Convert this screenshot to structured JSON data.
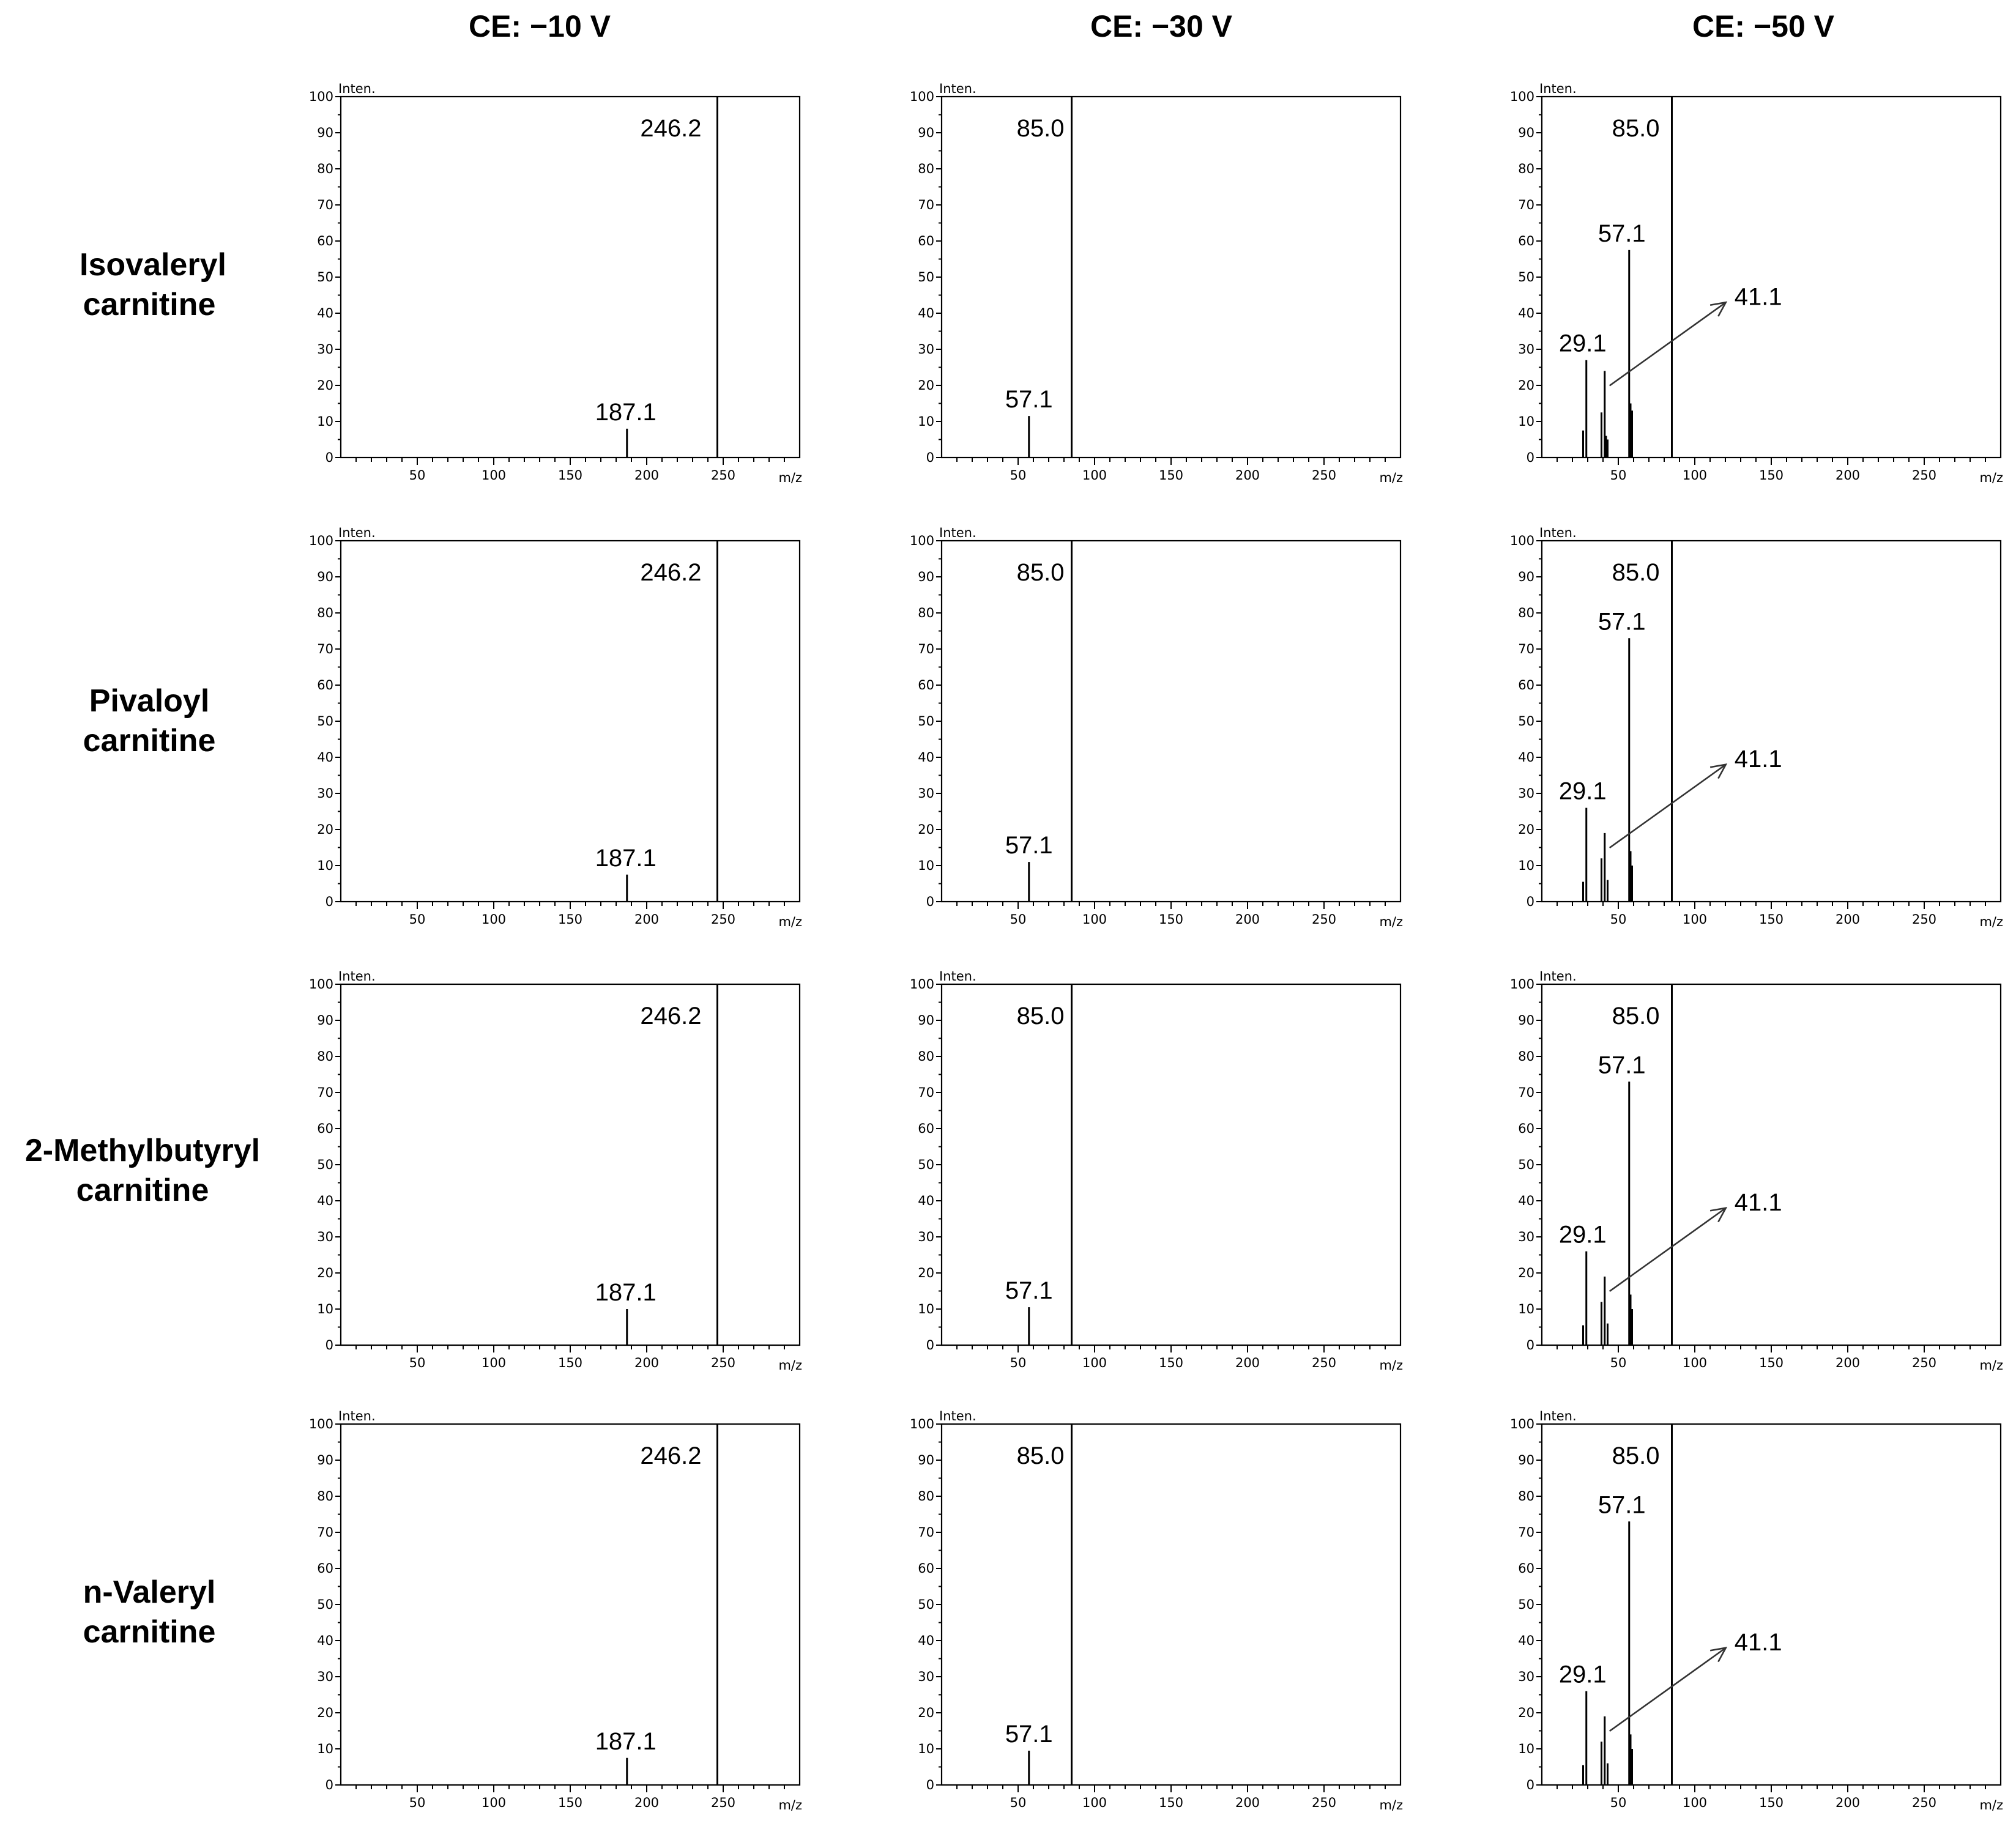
{
  "figure": {
    "column_titles": [
      "CE: −10 V",
      "CE: −30 V",
      "CE: −50 V"
    ],
    "row_titles": [
      [
        "Isovaleryl",
        "carnitine"
      ],
      [
        "Pivaloyl",
        "carnitine"
      ],
      [
        "2-Methylbutyryl",
        "carnitine"
      ],
      [
        "n-Valeryl",
        "carnitine"
      ]
    ]
  },
  "chart_data": [
    {
      "type": "bar",
      "title": "Isovaleryl carnitine, CE: −10 V",
      "ylabel": "Inten.",
      "xlabel": "m/z",
      "xlim": [
        0,
        300
      ],
      "ylim": [
        0,
        100
      ],
      "xticks": [
        50,
        100,
        150,
        200,
        250
      ],
      "yticks": [
        0,
        10,
        20,
        30,
        40,
        50,
        60,
        70,
        80,
        90,
        100
      ],
      "peaks": [
        {
          "mz": 187.1,
          "intensity": 8,
          "label": "187.1"
        },
        {
          "mz": 246.2,
          "intensity": 100,
          "label": "246.2"
        }
      ]
    },
    {
      "type": "bar",
      "title": "Isovaleryl carnitine, CE: −30 V",
      "ylabel": "Inten.",
      "xlabel": "m/z",
      "xlim": [
        0,
        300
      ],
      "ylim": [
        0,
        100
      ],
      "xticks": [
        50,
        100,
        150,
        200,
        250
      ],
      "yticks": [
        0,
        10,
        20,
        30,
        40,
        50,
        60,
        70,
        80,
        90,
        100
      ],
      "peaks": [
        {
          "mz": 57.1,
          "intensity": 11.5,
          "label": "57.1"
        },
        {
          "mz": 85.0,
          "intensity": 100,
          "label": "85.0"
        }
      ]
    },
    {
      "type": "bar",
      "title": "Isovaleryl carnitine, CE: −50 V",
      "ylabel": "Inten.",
      "xlabel": "m/z",
      "xlim": [
        0,
        300
      ],
      "ylim": [
        0,
        100
      ],
      "xticks": [
        50,
        100,
        150,
        200,
        250
      ],
      "yticks": [
        0,
        10,
        20,
        30,
        40,
        50,
        60,
        70,
        80,
        90,
        100
      ],
      "peaks": [
        {
          "mz": 27,
          "intensity": 7.5
        },
        {
          "mz": 29.1,
          "intensity": 27,
          "label": "29.1"
        },
        {
          "mz": 39,
          "intensity": 12.5
        },
        {
          "mz": 41.1,
          "intensity": 24,
          "label": "41.1"
        },
        {
          "mz": 42,
          "intensity": 6
        },
        {
          "mz": 43,
          "intensity": 5
        },
        {
          "mz": 57.1,
          "intensity": 57.5,
          "label": "57.1"
        },
        {
          "mz": 58,
          "intensity": 15
        },
        {
          "mz": 59,
          "intensity": 13
        },
        {
          "mz": 85.0,
          "intensity": 100,
          "label": "85.0"
        }
      ]
    },
    {
      "type": "bar",
      "title": "Pivaloyl carnitine, CE: −10 V",
      "ylabel": "Inten.",
      "xlabel": "m/z",
      "xlim": [
        0,
        300
      ],
      "ylim": [
        0,
        100
      ],
      "xticks": [
        50,
        100,
        150,
        200,
        250
      ],
      "yticks": [
        0,
        10,
        20,
        30,
        40,
        50,
        60,
        70,
        80,
        90,
        100
      ],
      "peaks": [
        {
          "mz": 187.1,
          "intensity": 7.5,
          "label": "187.1"
        },
        {
          "mz": 246.2,
          "intensity": 100,
          "label": "246.2"
        }
      ]
    },
    {
      "type": "bar",
      "title": "Pivaloyl carnitine, CE: −30 V",
      "ylabel": "Inten.",
      "xlabel": "m/z",
      "xlim": [
        0,
        300
      ],
      "ylim": [
        0,
        100
      ],
      "xticks": [
        50,
        100,
        150,
        200,
        250
      ],
      "yticks": [
        0,
        10,
        20,
        30,
        40,
        50,
        60,
        70,
        80,
        90,
        100
      ],
      "peaks": [
        {
          "mz": 57.1,
          "intensity": 11,
          "label": "57.1"
        },
        {
          "mz": 85.0,
          "intensity": 100,
          "label": "85.0"
        }
      ]
    },
    {
      "type": "bar",
      "title": "Pivaloyl carnitine, CE: −50 V",
      "ylabel": "Inten.",
      "xlabel": "m/z",
      "xlim": [
        0,
        300
      ],
      "ylim": [
        0,
        100
      ],
      "xticks": [
        50,
        100,
        150,
        200,
        250
      ],
      "yticks": [
        0,
        10,
        20,
        30,
        40,
        50,
        60,
        70,
        80,
        90,
        100
      ],
      "peaks": [
        {
          "mz": 27,
          "intensity": 5.5
        },
        {
          "mz": 29.1,
          "intensity": 26,
          "label": "29.1"
        },
        {
          "mz": 39,
          "intensity": 12
        },
        {
          "mz": 41.1,
          "intensity": 19,
          "label": "41.1"
        },
        {
          "mz": 43,
          "intensity": 6
        },
        {
          "mz": 57.1,
          "intensity": 73,
          "label": "57.1"
        },
        {
          "mz": 58,
          "intensity": 14
        },
        {
          "mz": 59,
          "intensity": 10
        },
        {
          "mz": 85.0,
          "intensity": 100,
          "label": "85.0"
        }
      ]
    },
    {
      "type": "bar",
      "title": "2-Methylbutyryl carnitine, CE: −10 V",
      "ylabel": "Inten.",
      "xlabel": "m/z",
      "xlim": [
        0,
        300
      ],
      "ylim": [
        0,
        100
      ],
      "xticks": [
        50,
        100,
        150,
        200,
        250
      ],
      "yticks": [
        0,
        10,
        20,
        30,
        40,
        50,
        60,
        70,
        80,
        90,
        100
      ],
      "peaks": [
        {
          "mz": 187.1,
          "intensity": 10,
          "label": "187.1"
        },
        {
          "mz": 246.2,
          "intensity": 100,
          "label": "246.2"
        }
      ]
    },
    {
      "type": "bar",
      "title": "2-Methylbutyryl carnitine, CE: −30 V",
      "ylabel": "Inten.",
      "xlabel": "m/z",
      "xlim": [
        0,
        300
      ],
      "ylim": [
        0,
        100
      ],
      "xticks": [
        50,
        100,
        150,
        200,
        250
      ],
      "yticks": [
        0,
        10,
        20,
        30,
        40,
        50,
        60,
        70,
        80,
        90,
        100
      ],
      "peaks": [
        {
          "mz": 57.1,
          "intensity": 10.5,
          "label": "57.1"
        },
        {
          "mz": 85.0,
          "intensity": 100,
          "label": "85.0"
        }
      ]
    },
    {
      "type": "bar",
      "title": "2-Methylbutyryl carnitine, CE: −50 V",
      "ylabel": "Inten.",
      "xlabel": "m/z",
      "xlim": [
        0,
        300
      ],
      "ylim": [
        0,
        100
      ],
      "xticks": [
        50,
        100,
        150,
        200,
        250
      ],
      "yticks": [
        0,
        10,
        20,
        30,
        40,
        50,
        60,
        70,
        80,
        90,
        100
      ],
      "peaks": [
        {
          "mz": 27,
          "intensity": 5.5
        },
        {
          "mz": 29.1,
          "intensity": 26,
          "label": "29.1"
        },
        {
          "mz": 39,
          "intensity": 12
        },
        {
          "mz": 41.1,
          "intensity": 19,
          "label": "41.1"
        },
        {
          "mz": 43,
          "intensity": 6
        },
        {
          "mz": 57.1,
          "intensity": 73,
          "label": "57.1"
        },
        {
          "mz": 58,
          "intensity": 14
        },
        {
          "mz": 59,
          "intensity": 10
        },
        {
          "mz": 85.0,
          "intensity": 100,
          "label": "85.0"
        }
      ]
    },
    {
      "type": "bar",
      "title": "n-Valeryl carnitine, CE: −10 V",
      "ylabel": "Inten.",
      "xlabel": "m/z",
      "xlim": [
        0,
        300
      ],
      "ylim": [
        0,
        100
      ],
      "xticks": [
        50,
        100,
        150,
        200,
        250
      ],
      "yticks": [
        0,
        10,
        20,
        30,
        40,
        50,
        60,
        70,
        80,
        90,
        100
      ],
      "peaks": [
        {
          "mz": 187.1,
          "intensity": 7.5,
          "label": "187.1"
        },
        {
          "mz": 246.2,
          "intensity": 100,
          "label": "246.2"
        }
      ]
    },
    {
      "type": "bar",
      "title": "n-Valeryl carnitine, CE: −30 V",
      "ylabel": "Inten.",
      "xlabel": "m/z",
      "xlim": [
        0,
        300
      ],
      "ylim": [
        0,
        100
      ],
      "xticks": [
        50,
        100,
        150,
        200,
        250
      ],
      "yticks": [
        0,
        10,
        20,
        30,
        40,
        50,
        60,
        70,
        80,
        90,
        100
      ],
      "peaks": [
        {
          "mz": 57.1,
          "intensity": 9.5,
          "label": "57.1"
        },
        {
          "mz": 85.0,
          "intensity": 100,
          "label": "85.0"
        }
      ]
    },
    {
      "type": "bar",
      "title": "n-Valeryl carnitine, CE: −50 V",
      "ylabel": "Inten.",
      "xlabel": "m/z",
      "xlim": [
        0,
        300
      ],
      "ylim": [
        0,
        100
      ],
      "xticks": [
        50,
        100,
        150,
        200,
        250
      ],
      "yticks": [
        0,
        10,
        20,
        30,
        40,
        50,
        60,
        70,
        80,
        90,
        100
      ],
      "peaks": [
        {
          "mz": 27,
          "intensity": 5.5
        },
        {
          "mz": 29.1,
          "intensity": 26,
          "label": "29.1"
        },
        {
          "mz": 39,
          "intensity": 12
        },
        {
          "mz": 41.1,
          "intensity": 19,
          "label": "41.1"
        },
        {
          "mz": 43,
          "intensity": 6
        },
        {
          "mz": 57.1,
          "intensity": 73,
          "label": "57.1"
        },
        {
          "mz": 58,
          "intensity": 14
        },
        {
          "mz": 59,
          "intensity": 10
        },
        {
          "mz": 85.0,
          "intensity": 100,
          "label": "85.0"
        }
      ]
    }
  ]
}
